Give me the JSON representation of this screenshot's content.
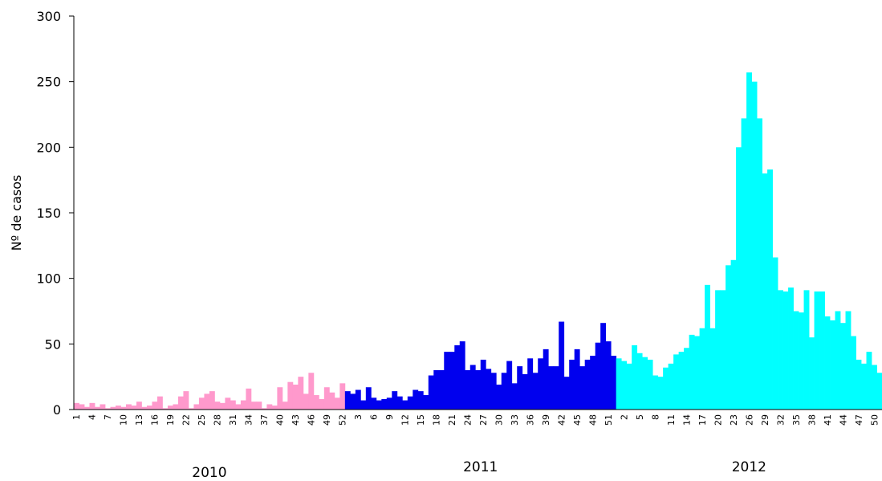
{
  "chart_data": {
    "type": "bar",
    "title": "",
    "xlabel": "",
    "ylabel": "Nº de casos",
    "ylim": [
      0,
      300
    ],
    "yticks": [
      "0",
      "50",
      "100",
      "150",
      "200",
      "250",
      "300"
    ],
    "grid": false,
    "legend": "none",
    "series": [
      {
        "year": "2010",
        "color": "#ff99cc",
        "weeks_start": 1,
        "values": [
          5,
          4,
          2,
          5,
          2,
          4,
          1,
          2,
          3,
          2,
          4,
          3,
          6,
          2,
          3,
          6,
          10,
          1,
          3,
          4,
          10,
          14,
          1,
          4,
          9,
          12,
          14,
          6,
          5,
          9,
          7,
          4,
          7,
          16,
          6,
          6,
          1,
          4,
          3,
          17,
          6,
          21,
          19,
          25,
          12,
          28,
          11,
          8,
          17,
          13,
          9,
          20
        ]
      },
      {
        "year": "2011",
        "color": "#0000ee",
        "weeks_start": 1,
        "values": [
          14,
          12,
          15,
          7,
          17,
          9,
          7,
          8,
          9,
          14,
          10,
          7,
          10,
          15,
          14,
          11,
          26,
          30,
          30,
          44,
          44,
          49,
          52,
          30,
          34,
          30,
          38,
          31,
          28,
          19,
          28,
          37,
          20,
          33,
          27,
          39,
          28,
          39,
          46,
          33,
          33,
          67,
          25,
          38,
          46,
          33,
          38,
          41,
          51,
          66,
          52,
          41
        ]
      },
      {
        "year": "2012",
        "color": "#00ffff",
        "weeks_start": 1,
        "values": [
          39,
          37,
          35,
          49,
          43,
          40,
          38,
          26,
          25,
          32,
          35,
          42,
          44,
          47,
          57,
          56,
          62,
          95,
          62,
          91,
          91,
          110,
          114,
          200,
          222,
          257,
          250,
          222,
          180,
          183,
          116,
          91,
          90,
          93,
          75,
          74,
          91,
          55,
          90,
          90,
          71,
          68,
          75,
          66,
          75,
          56,
          38,
          35,
          44,
          34,
          28
        ]
      }
    ],
    "xtick_labels_2010": [
      "1",
      "4",
      "7",
      "10",
      "13",
      "16",
      "19",
      "22",
      "25",
      "28",
      "31",
      "34",
      "37",
      "40",
      "43",
      "46",
      "49",
      "52"
    ],
    "xtick_labels_2011": [
      "3",
      "6",
      "9",
      "12",
      "15",
      "18",
      "21",
      "24",
      "27",
      "30",
      "33",
      "36",
      "39",
      "42",
      "45",
      "48",
      "51"
    ],
    "xtick_labels_2012": [
      "2",
      "5",
      "8",
      "11",
      "14",
      "17",
      "20",
      "23",
      "26",
      "29",
      "32",
      "35",
      "38",
      "41",
      "44",
      "47",
      "50"
    ],
    "year_labels": [
      "2010",
      "2011",
      "2012"
    ]
  }
}
